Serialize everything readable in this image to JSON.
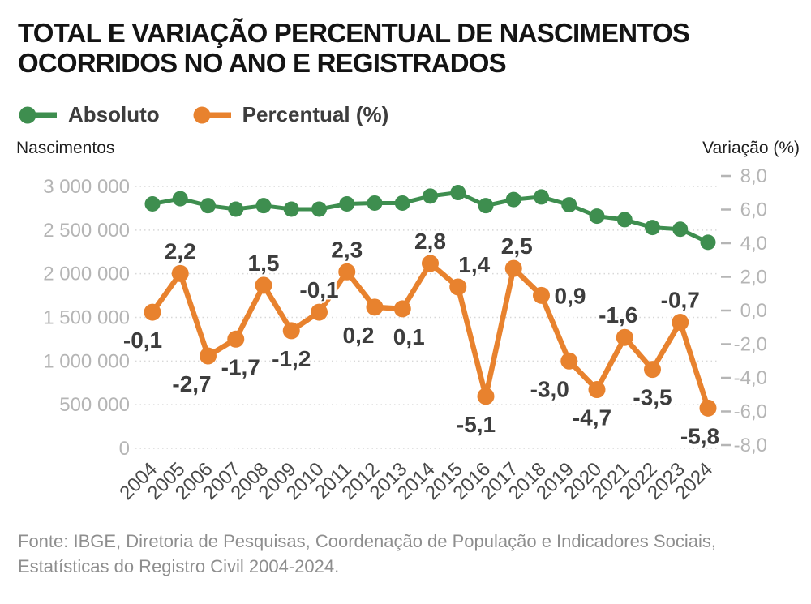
{
  "header": {
    "title_line1": "TOTAL E VARIAÇÃO PERCENTUAL DE NASCIMENTOS",
    "title_line2": "OCORRIDOS NO ANO E REGISTRADOS"
  },
  "source": "Fonte: IBGE, Diretoria de Pesquisas, Coordenação de População e Indicadores Sociais, Estatísticas do Registro Civil 2004-2024.",
  "colors": {
    "absolute_green": "#3e8e4f",
    "percent_orange": "#e8822e",
    "data_label": "#3d3d3d",
    "tick_gray": "#b5b5b5",
    "year_gray": "#4a4a4a",
    "grid_gray": "#d8d8d8"
  },
  "chart_data": {
    "type": "line",
    "title": "Total e variação percentual de nascimentos ocorridos no ano e registrados",
    "categories": [
      "2004",
      "2005",
      "2006",
      "2007",
      "2008",
      "2009",
      "2010",
      "2011",
      "2012",
      "2013",
      "2014",
      "2015",
      "2016",
      "2017",
      "2018",
      "2019",
      "2020",
      "2021",
      "2022",
      "2023",
      "2024"
    ],
    "legend_position": "top",
    "grid": "horizontal-dotted",
    "series": [
      {
        "name": "Absoluto",
        "axis": "left",
        "color": "#3e8e4f",
        "values": [
          2800000,
          2860000,
          2780000,
          2740000,
          2780000,
          2740000,
          2740000,
          2800000,
          2810000,
          2810000,
          2890000,
          2930000,
          2780000,
          2850000,
          2880000,
          2790000,
          2660000,
          2620000,
          2530000,
          2510000,
          2360000
        ]
      },
      {
        "name": "Percentual (%)",
        "axis": "right",
        "color": "#e8822e",
        "values": [
          -0.1,
          2.2,
          -2.7,
          -1.7,
          1.5,
          -1.2,
          -0.1,
          2.3,
          0.2,
          0.1,
          2.8,
          1.4,
          -5.1,
          2.5,
          0.9,
          -3.0,
          -4.7,
          -1.6,
          -3.5,
          -0.7,
          -5.8
        ],
        "point_labels": [
          "-0,1",
          "2,2",
          "-2,7",
          "-1,7",
          "1,5",
          "-1,2",
          "-0,1",
          "2,3",
          "0,2",
          "0,1",
          "2,8",
          "1,4",
          "-5,1",
          "2,5",
          "0,9",
          "-3,0",
          "-4,7",
          "-1,6",
          "-3,5",
          "-0,7",
          "-5,8"
        ],
        "label_sides": [
          "below",
          "above",
          "below",
          "below",
          "above",
          "below",
          "above",
          "above",
          "below",
          "below",
          "above",
          "above",
          "below",
          "above",
          "right",
          "below",
          "below",
          "above",
          "below",
          "above",
          "below"
        ],
        "label_dx": [
          -12,
          0,
          -20,
          6,
          0,
          0,
          0,
          0,
          -20,
          8,
          0,
          20,
          -12,
          4,
          0,
          -24,
          -6,
          -8,
          0,
          0,
          -10
        ]
      }
    ],
    "left_axis": {
      "title": "Nascimentos",
      "range": [
        0,
        3000000
      ],
      "tick_values": [
        0,
        500000,
        1000000,
        1500000,
        2000000,
        2500000,
        3000000
      ],
      "tick_labels": [
        "0",
        "500 000",
        "1 000 000",
        "1 500 000",
        "2 000 000",
        "2 500 000",
        "3 000 000"
      ]
    },
    "right_axis": {
      "title": "Variação (%)",
      "range": [
        -8,
        8
      ],
      "tick_values": [
        8,
        6,
        4,
        2,
        0,
        -2,
        -4,
        -6,
        -8
      ],
      "tick_labels": [
        "8,0",
        "6,0",
        "4,0",
        "2,0",
        "0,0",
        "-2,0",
        "-4,0",
        "-6,0",
        "-8,0"
      ]
    }
  }
}
